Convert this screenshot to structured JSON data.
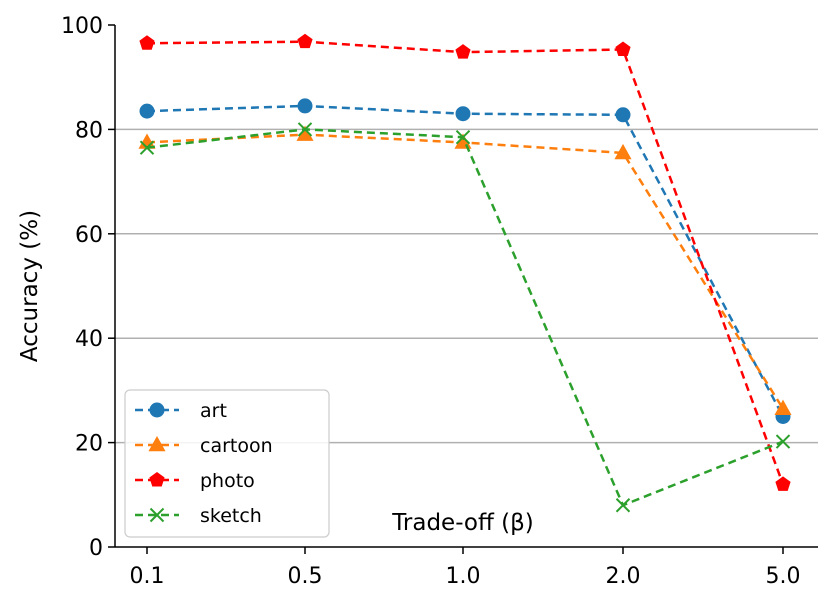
{
  "chart_data": {
    "type": "line",
    "categories": [
      "0.1",
      "0.5",
      "1.0",
      "2.0",
      "5.0"
    ],
    "xlabel": "Trade-off (β)",
    "ylabel": "Accuracy (%)",
    "ylim": [
      0,
      100
    ],
    "yticks": [
      "0",
      "20",
      "40",
      "60",
      "80",
      "100"
    ],
    "grid": "horizontal",
    "legend_position": "bottom-left",
    "series": [
      {
        "name": "art",
        "color": "#1f77b4",
        "marker": "circle",
        "values": [
          83.5,
          84.5,
          83.0,
          82.8,
          25.0
        ]
      },
      {
        "name": "cartoon",
        "color": "#ff7f0e",
        "marker": "triangle",
        "values": [
          77.5,
          79.0,
          77.5,
          75.5,
          26.5
        ]
      },
      {
        "name": "photo",
        "color": "#ff0000",
        "marker": "pentagon",
        "values": [
          96.5,
          96.8,
          94.8,
          95.3,
          12.0
        ]
      },
      {
        "name": "sketch",
        "color": "#2ca02c",
        "marker": "x",
        "values": [
          76.5,
          80.0,
          78.5,
          8.0,
          20.2
        ]
      }
    ]
  }
}
